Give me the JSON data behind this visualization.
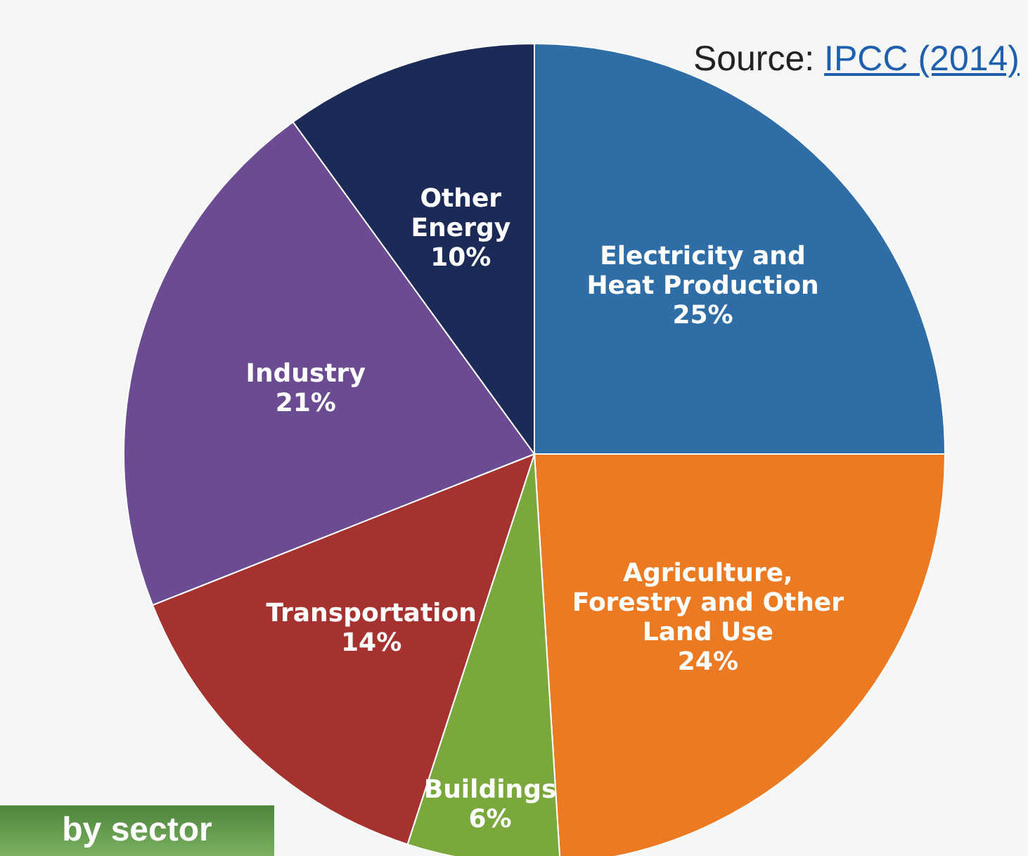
{
  "chart_data": {
    "type": "pie",
    "categories": [
      "Electricity and Heat Production",
      "Agriculture, Forestry and Other Land Use",
      "Buildings",
      "Transportation",
      "Industry",
      "Other Energy"
    ],
    "values": [
      25,
      24,
      6,
      14,
      21,
      10
    ],
    "colors": [
      "#2e6da6",
      "#ec7a22",
      "#7aa83c",
      "#a5322f",
      "#6b4b92",
      "#1b2a57"
    ],
    "value_labels": [
      "25%",
      "24%",
      "6%",
      "14%",
      "21%",
      "10%"
    ],
    "annotations": [
      "Source: IPCC (2014)",
      "by sector"
    ]
  }
}
